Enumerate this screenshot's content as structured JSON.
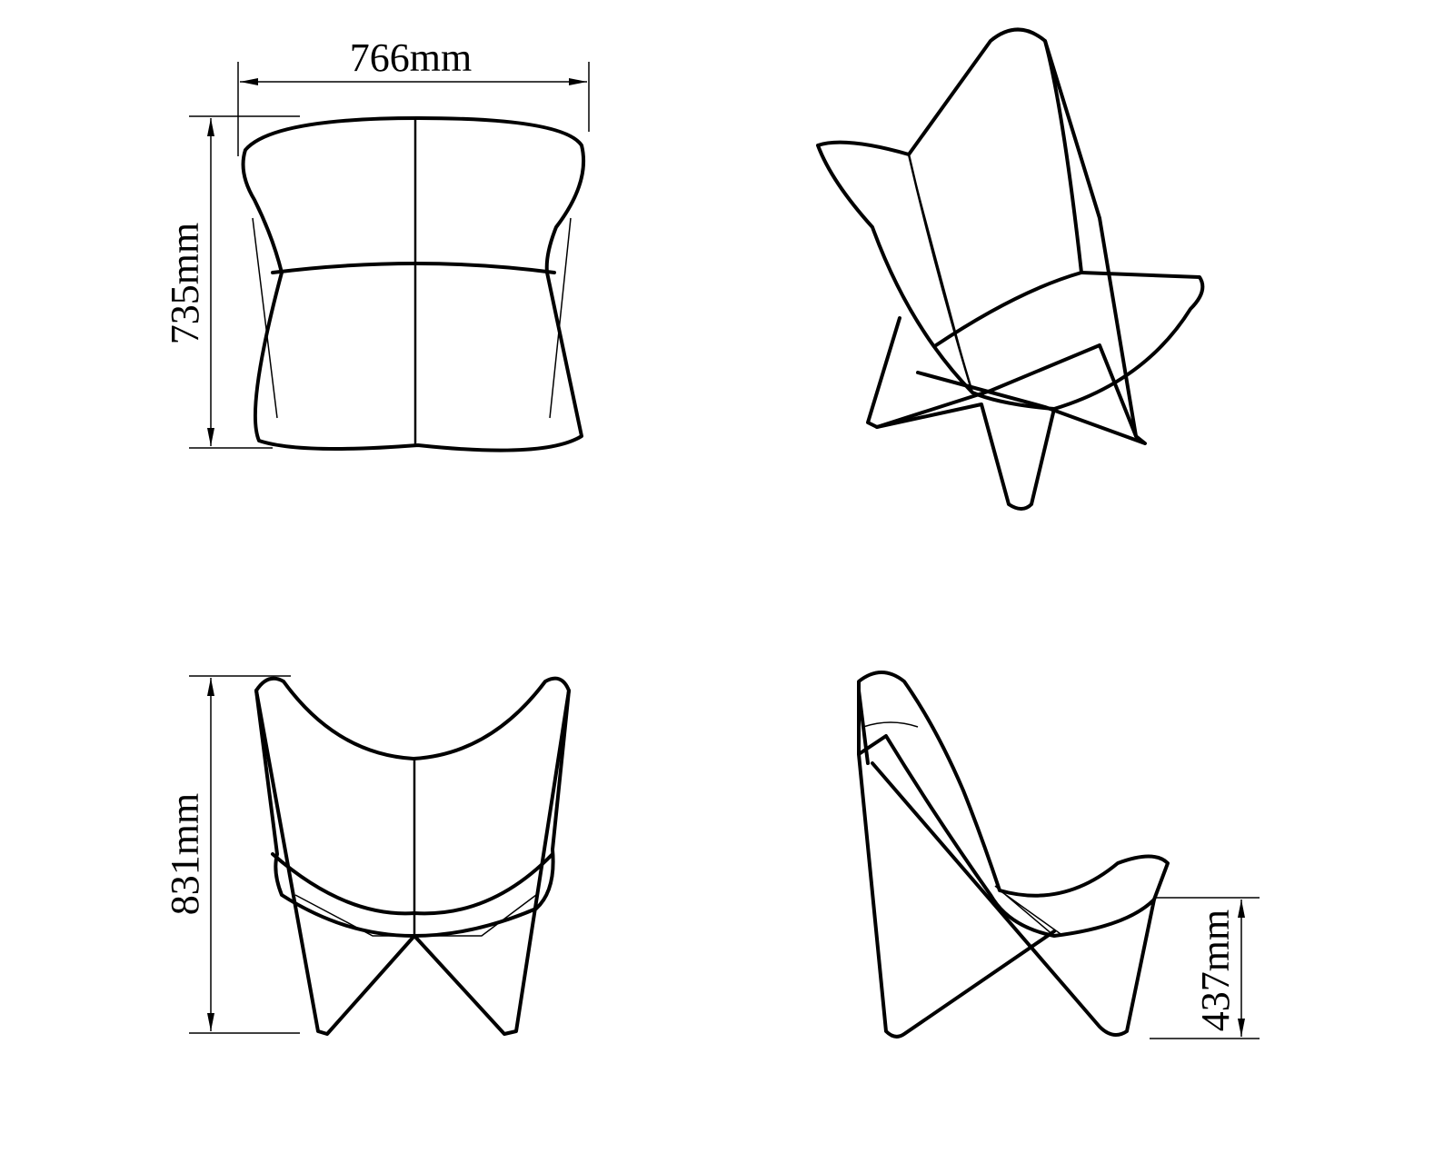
{
  "drawing": {
    "views": [
      {
        "name": "top view",
        "dimensions": [
          "766mm",
          "735mm"
        ]
      },
      {
        "name": "perspective view",
        "dimensions": []
      },
      {
        "name": "front view",
        "dimensions": [
          "831mm"
        ]
      },
      {
        "name": "side view",
        "dimensions": [
          "437mm"
        ]
      }
    ],
    "dimensions": {
      "width": "766mm",
      "depth": "735mm",
      "height": "831mm",
      "seat_height": "437mm"
    },
    "colors": {
      "line": "#000000",
      "background": "#ffffff"
    }
  }
}
